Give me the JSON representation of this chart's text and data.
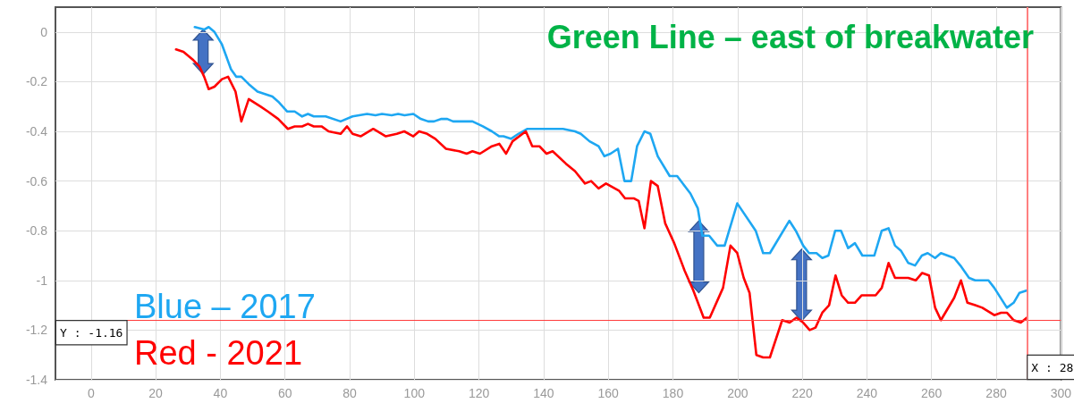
{
  "chart_data": {
    "type": "line",
    "title": "Green Line – east of breakwater",
    "series": [
      {
        "name": "Blue – 2017",
        "color": "#1ea7f2",
        "x": [
          32.1,
          35,
          36.4,
          38.2,
          40.5,
          43.3,
          44.9,
          46.5,
          48.8,
          51.5,
          56.1,
          57.9,
          60.7,
          63,
          65.3,
          67.1,
          68.9,
          72.6,
          77.2,
          80.9,
          85.4,
          88,
          90,
          93,
          95,
          97,
          99.7,
          102,
          104.3,
          106.1,
          108.4,
          110.2,
          112,
          118,
          121.2,
          124,
          126.3,
          127.6,
          129.9,
          132.2,
          135,
          136.8,
          146,
          149.7,
          151.5,
          154.2,
          157,
          158.8,
          160.7,
          163,
          165,
          167.1,
          168.9,
          171.2,
          173,
          175.3,
          179,
          181.3,
          185.4,
          187.7,
          189.1,
          191.2,
          193.7,
          196,
          199.9,
          205.6,
          207.9,
          210,
          216,
          218,
          220.3,
          222.1,
          224.4,
          226.2,
          228.1,
          230.2,
          232,
          234.2,
          236.3,
          238.6,
          242.3,
          244.6,
          246.7,
          248.7,
          250.5,
          252.8,
          254.9,
          257,
          258.8,
          261.1,
          262.9,
          267,
          268.9,
          271.6,
          273.5,
          277.6,
          279.4,
          283.3,
          285.4,
          287.2,
          289.5
        ],
        "values": [
          0.02,
          0.01,
          0.02,
          0.0,
          -0.05,
          -0.15,
          -0.18,
          -0.18,
          -0.21,
          -0.24,
          -0.26,
          -0.28,
          -0.32,
          -0.32,
          -0.34,
          -0.33,
          -0.34,
          -0.34,
          -0.36,
          -0.34,
          -0.33,
          -0.335,
          -0.33,
          -0.335,
          -0.33,
          -0.335,
          -0.33,
          -0.35,
          -0.36,
          -0.36,
          -0.35,
          -0.35,
          -0.36,
          -0.36,
          -0.38,
          -0.4,
          -0.42,
          -0.42,
          -0.43,
          -0.41,
          -0.39,
          -0.39,
          -0.39,
          -0.4,
          -0.41,
          -0.44,
          -0.46,
          -0.5,
          -0.49,
          -0.47,
          -0.6,
          -0.6,
          -0.46,
          -0.4,
          -0.41,
          -0.5,
          -0.58,
          -0.58,
          -0.65,
          -0.71,
          -0.82,
          -0.82,
          -0.86,
          -0.86,
          -0.69,
          -0.8,
          -0.89,
          -0.89,
          -0.76,
          -0.8,
          -0.86,
          -0.89,
          -0.89,
          -0.91,
          -0.9,
          -0.8,
          -0.8,
          -0.87,
          -0.85,
          -0.9,
          -0.9,
          -0.8,
          -0.79,
          -0.86,
          -0.88,
          -0.93,
          -0.94,
          -0.9,
          -0.89,
          -0.91,
          -0.89,
          -0.91,
          -0.94,
          -0.99,
          -1.0,
          -1.0,
          -1.03,
          -1.11,
          -1.09,
          -1.05,
          -1.04
        ]
      },
      {
        "name": "Red - 2021",
        "color": "#ff0000",
        "x": [
          26.3,
          28.6,
          31.4,
          33.6,
          35,
          36.4,
          38.2,
          40.5,
          42.4,
          44.7,
          46.5,
          48.8,
          52.4,
          54.7,
          57.9,
          60.9,
          63,
          65.3,
          67.1,
          68.9,
          71.3,
          73.5,
          77.2,
          79.2,
          80.9,
          83.4,
          87.3,
          91.2,
          94.6,
          96.9,
          99.7,
          101.5,
          104,
          106.5,
          109.8,
          113.9,
          116.2,
          118,
          120.3,
          124,
          126.3,
          128.4,
          130.4,
          134.5,
          136.5,
          138.7,
          140.9,
          142.8,
          146.9,
          149.7,
          152.8,
          154.7,
          157,
          159.3,
          163.4,
          165.2,
          168,
          169.4,
          171.2,
          173.2,
          175.3,
          177.6,
          180.4,
          183.6,
          186.3,
          189.5,
          191.4,
          195.5,
          197.8,
          199.9,
          201.9,
          203.7,
          205.8,
          207.9,
          210,
          213.8,
          216.1,
          218.2,
          220.3,
          222.3,
          224.1,
          226.2,
          228.3,
          230.3,
          232.2,
          234.2,
          236.3,
          238.4,
          242.7,
          244.6,
          246.7,
          248.7,
          250.5,
          252.8,
          255.1,
          257.1,
          259.2,
          261.1,
          262.9,
          267,
          269.1,
          271.1,
          273.5,
          275.7,
          279.4,
          281.5,
          283.3,
          285.4,
          287.6,
          289.5
        ],
        "values": [
          -0.07,
          -0.08,
          -0.11,
          -0.14,
          -0.18,
          -0.23,
          -0.22,
          -0.19,
          -0.18,
          -0.24,
          -0.36,
          -0.27,
          -0.3,
          -0.32,
          -0.35,
          -0.39,
          -0.38,
          -0.38,
          -0.37,
          -0.38,
          -0.38,
          -0.4,
          -0.41,
          -0.38,
          -0.41,
          -0.42,
          -0.39,
          -0.42,
          -0.41,
          -0.4,
          -0.42,
          -0.4,
          -0.41,
          -0.43,
          -0.47,
          -0.48,
          -0.49,
          -0.48,
          -0.49,
          -0.46,
          -0.45,
          -0.49,
          -0.44,
          -0.4,
          -0.46,
          -0.46,
          -0.49,
          -0.48,
          -0.53,
          -0.56,
          -0.61,
          -0.6,
          -0.63,
          -0.61,
          -0.64,
          -0.67,
          -0.67,
          -0.68,
          -0.79,
          -0.6,
          -0.62,
          -0.77,
          -0.85,
          -0.96,
          -1.04,
          -1.15,
          -1.15,
          -1.03,
          -0.86,
          -0.89,
          -0.99,
          -1.05,
          -1.3,
          -1.31,
          -1.31,
          -1.16,
          -1.17,
          -1.15,
          -1.17,
          -1.2,
          -1.19,
          -1.13,
          -1.1,
          -0.98,
          -1.06,
          -1.09,
          -1.09,
          -1.06,
          -1.06,
          -1.03,
          -0.93,
          -0.99,
          -0.99,
          -0.99,
          -1.0,
          -0.97,
          -0.98,
          -1.11,
          -1.16,
          -1.07,
          -1.0,
          -1.09,
          -1.1,
          -1.11,
          -1.14,
          -1.13,
          -1.13,
          -1.16,
          -1.17,
          -1.15
        ]
      }
    ],
    "xlim": [
      -11,
      300
    ],
    "xticks": [
      0,
      20,
      40,
      60,
      80,
      100,
      120,
      140,
      160,
      180,
      200,
      220,
      240,
      260,
      280,
      300
    ],
    "ylim": [
      -1.4,
      0.1
    ],
    "yticks": [
      -1.4,
      -1.2,
      -1,
      -0.8,
      -0.6,
      -0.4,
      -0.2,
      0
    ],
    "ref_lines": [
      {
        "axis": "y",
        "value": -1.16,
        "label": "Y : -1.16",
        "color": "#ff3b3b"
      },
      {
        "axis": "x",
        "value": 289.5,
        "color": "#ff8080"
      }
    ],
    "annotations": [
      {
        "text": "X : 28",
        "x": 289.5,
        "y": -1.4
      }
    ],
    "grid": true,
    "legend": "bottom left",
    "marker": "none",
    "line_style": "solid"
  }
}
